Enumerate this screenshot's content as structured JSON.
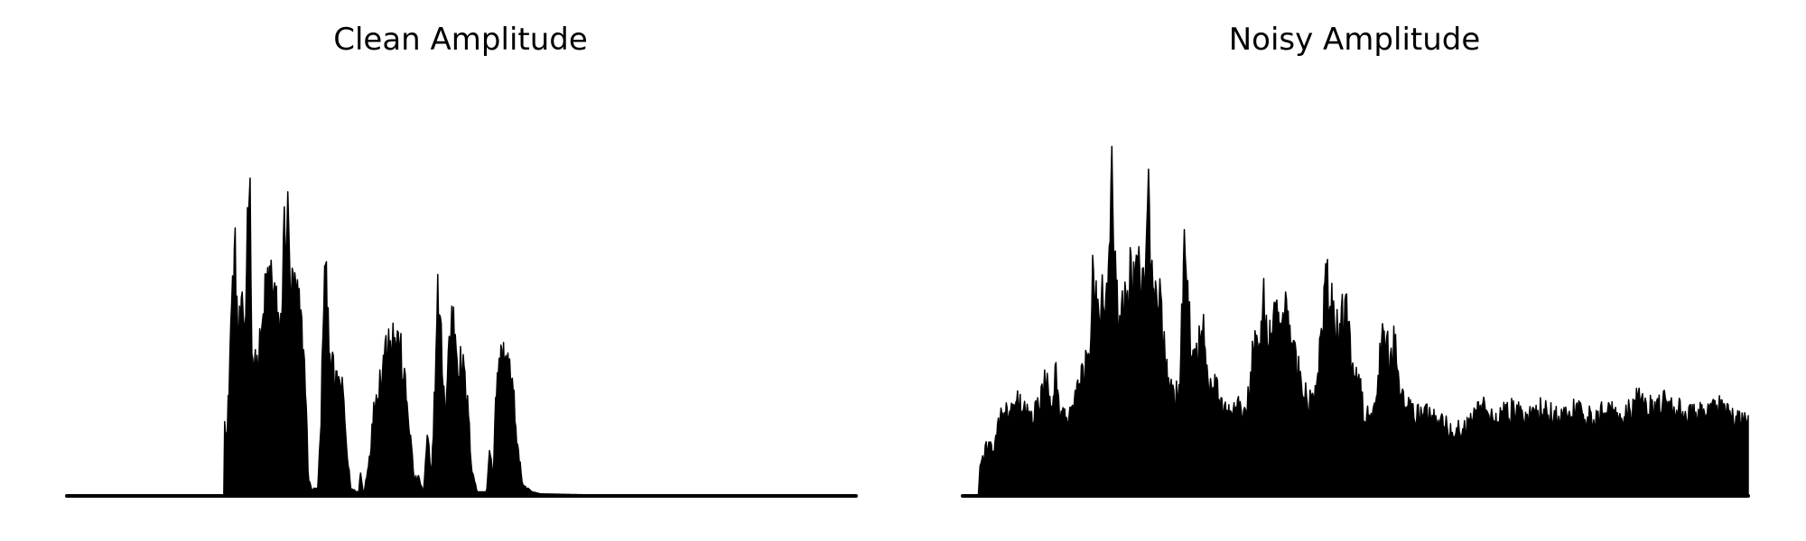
{
  "chart_data": [
    {
      "type": "area",
      "title": "Clean Amplitude",
      "xlabel": "",
      "ylabel": "",
      "axes_visible": false,
      "grid": false,
      "color": "#000000",
      "ylim": [
        0,
        1
      ],
      "x_range": [
        0,
        1
      ],
      "envelope": [
        [
          0.0,
          0.0
        ],
        [
          0.199,
          0.0
        ],
        [
          0.2,
          0.25
        ],
        [
          0.203,
          0.15
        ],
        [
          0.208,
          0.5
        ],
        [
          0.213,
          0.68
        ],
        [
          0.217,
          0.45
        ],
        [
          0.222,
          0.5
        ],
        [
          0.226,
          0.48
        ],
        [
          0.231,
          0.99
        ],
        [
          0.235,
          0.4
        ],
        [
          0.24,
          0.35
        ],
        [
          0.247,
          0.45
        ],
        [
          0.253,
          0.6
        ],
        [
          0.26,
          0.62
        ],
        [
          0.265,
          0.55
        ],
        [
          0.268,
          0.45
        ],
        [
          0.272,
          0.5
        ],
        [
          0.276,
          0.78
        ],
        [
          0.28,
          0.77
        ],
        [
          0.284,
          0.58
        ],
        [
          0.29,
          0.57
        ],
        [
          0.296,
          0.5
        ],
        [
          0.302,
          0.35
        ],
        [
          0.306,
          0.05
        ],
        [
          0.31,
          0.02
        ],
        [
          0.318,
          0.02
        ],
        [
          0.322,
          0.2
        ],
        [
          0.326,
          0.63
        ],
        [
          0.33,
          0.55
        ],
        [
          0.334,
          0.4
        ],
        [
          0.34,
          0.31
        ],
        [
          0.347,
          0.32
        ],
        [
          0.351,
          0.26
        ],
        [
          0.355,
          0.12
        ],
        [
          0.36,
          0.02
        ],
        [
          0.37,
          0.01
        ],
        [
          0.372,
          0.07
        ],
        [
          0.376,
          0.0
        ],
        [
          0.384,
          0.12
        ],
        [
          0.39,
          0.26
        ],
        [
          0.396,
          0.32
        ],
        [
          0.402,
          0.4
        ],
        [
          0.408,
          0.46
        ],
        [
          0.414,
          0.45
        ],
        [
          0.418,
          0.44
        ],
        [
          0.422,
          0.42
        ],
        [
          0.428,
          0.32
        ],
        [
          0.434,
          0.2
        ],
        [
          0.44,
          0.05
        ],
        [
          0.446,
          0.05
        ],
        [
          0.452,
          0.01
        ],
        [
          0.457,
          0.17
        ],
        [
          0.462,
          0.05
        ],
        [
          0.467,
          0.35
        ],
        [
          0.47,
          0.56
        ],
        [
          0.474,
          0.45
        ],
        [
          0.48,
          0.22
        ],
        [
          0.485,
          0.47
        ],
        [
          0.49,
          0.5
        ],
        [
          0.496,
          0.38
        ],
        [
          0.502,
          0.36
        ],
        [
          0.508,
          0.25
        ],
        [
          0.513,
          0.08
        ],
        [
          0.52,
          0.01
        ],
        [
          0.532,
          0.01
        ],
        [
          0.536,
          0.15
        ],
        [
          0.54,
          0.05
        ],
        [
          0.545,
          0.35
        ],
        [
          0.55,
          0.38
        ],
        [
          0.555,
          0.4
        ],
        [
          0.56,
          0.37
        ],
        [
          0.566,
          0.28
        ],
        [
          0.572,
          0.12
        ],
        [
          0.578,
          0.03
        ],
        [
          0.59,
          0.01
        ],
        [
          0.6,
          0.005
        ],
        [
          0.65,
          0.003
        ],
        [
          0.7,
          0.001
        ],
        [
          1.0,
          0.0
        ]
      ]
    },
    {
      "type": "area",
      "title": "Noisy Amplitude",
      "xlabel": "",
      "ylabel": "",
      "axes_visible": false,
      "grid": false,
      "color": "#000000",
      "ylim": [
        0,
        1
      ],
      "x_range": [
        0,
        1
      ],
      "envelope": [
        [
          0.0,
          0.0
        ],
        [
          0.02,
          0.0
        ],
        [
          0.022,
          0.08
        ],
        [
          0.03,
          0.14
        ],
        [
          0.04,
          0.13
        ],
        [
          0.05,
          0.24
        ],
        [
          0.06,
          0.22
        ],
        [
          0.07,
          0.26
        ],
        [
          0.08,
          0.23
        ],
        [
          0.09,
          0.22
        ],
        [
          0.1,
          0.27
        ],
        [
          0.106,
          0.35
        ],
        [
          0.112,
          0.26
        ],
        [
          0.118,
          0.35
        ],
        [
          0.124,
          0.24
        ],
        [
          0.13,
          0.22
        ],
        [
          0.14,
          0.25
        ],
        [
          0.148,
          0.3
        ],
        [
          0.154,
          0.35
        ],
        [
          0.162,
          0.43
        ],
        [
          0.166,
          0.7
        ],
        [
          0.172,
          0.5
        ],
        [
          0.178,
          0.58
        ],
        [
          0.183,
          0.54
        ],
        [
          0.19,
          0.99
        ],
        [
          0.195,
          0.55
        ],
        [
          0.2,
          0.5
        ],
        [
          0.21,
          0.62
        ],
        [
          0.22,
          0.58
        ],
        [
          0.226,
          0.68
        ],
        [
          0.232,
          0.5
        ],
        [
          0.236,
          0.9
        ],
        [
          0.242,
          0.55
        ],
        [
          0.248,
          0.62
        ],
        [
          0.254,
          0.46
        ],
        [
          0.262,
          0.3
        ],
        [
          0.27,
          0.28
        ],
        [
          0.276,
          0.3
        ],
        [
          0.282,
          0.66
        ],
        [
          0.288,
          0.49
        ],
        [
          0.294,
          0.42
        ],
        [
          0.3,
          0.42
        ],
        [
          0.306,
          0.46
        ],
        [
          0.312,
          0.31
        ],
        [
          0.32,
          0.32
        ],
        [
          0.33,
          0.25
        ],
        [
          0.34,
          0.24
        ],
        [
          0.35,
          0.27
        ],
        [
          0.36,
          0.22
        ],
        [
          0.37,
          0.42
        ],
        [
          0.38,
          0.44
        ],
        [
          0.384,
          0.58
        ],
        [
          0.39,
          0.45
        ],
        [
          0.4,
          0.49
        ],
        [
          0.408,
          0.52
        ],
        [
          0.416,
          0.48
        ],
        [
          0.424,
          0.4
        ],
        [
          0.43,
          0.32
        ],
        [
          0.44,
          0.26
        ],
        [
          0.45,
          0.3
        ],
        [
          0.458,
          0.46
        ],
        [
          0.462,
          0.67
        ],
        [
          0.468,
          0.55
        ],
        [
          0.476,
          0.46
        ],
        [
          0.484,
          0.5
        ],
        [
          0.49,
          0.5
        ],
        [
          0.496,
          0.35
        ],
        [
          0.504,
          0.32
        ],
        [
          0.512,
          0.22
        ],
        [
          0.52,
          0.22
        ],
        [
          0.528,
          0.33
        ],
        [
          0.536,
          0.45
        ],
        [
          0.544,
          0.38
        ],
        [
          0.55,
          0.43
        ],
        [
          0.556,
          0.3
        ],
        [
          0.566,
          0.26
        ],
        [
          0.576,
          0.22
        ],
        [
          0.586,
          0.26
        ],
        [
          0.596,
          0.21
        ],
        [
          0.61,
          0.22
        ],
        [
          0.62,
          0.18
        ],
        [
          0.64,
          0.19
        ],
        [
          0.66,
          0.25
        ],
        [
          0.68,
          0.22
        ],
        [
          0.7,
          0.24
        ],
        [
          0.72,
          0.22
        ],
        [
          0.74,
          0.25
        ],
        [
          0.76,
          0.22
        ],
        [
          0.78,
          0.24
        ],
        [
          0.8,
          0.22
        ],
        [
          0.82,
          0.25
        ],
        [
          0.84,
          0.22
        ],
        [
          0.86,
          0.27
        ],
        [
          0.88,
          0.24
        ],
        [
          0.9,
          0.27
        ],
        [
          0.92,
          0.22
        ],
        [
          0.94,
          0.23
        ],
        [
          0.96,
          0.25
        ],
        [
          0.98,
          0.22
        ],
        [
          1.0,
          0.2
        ]
      ]
    }
  ]
}
